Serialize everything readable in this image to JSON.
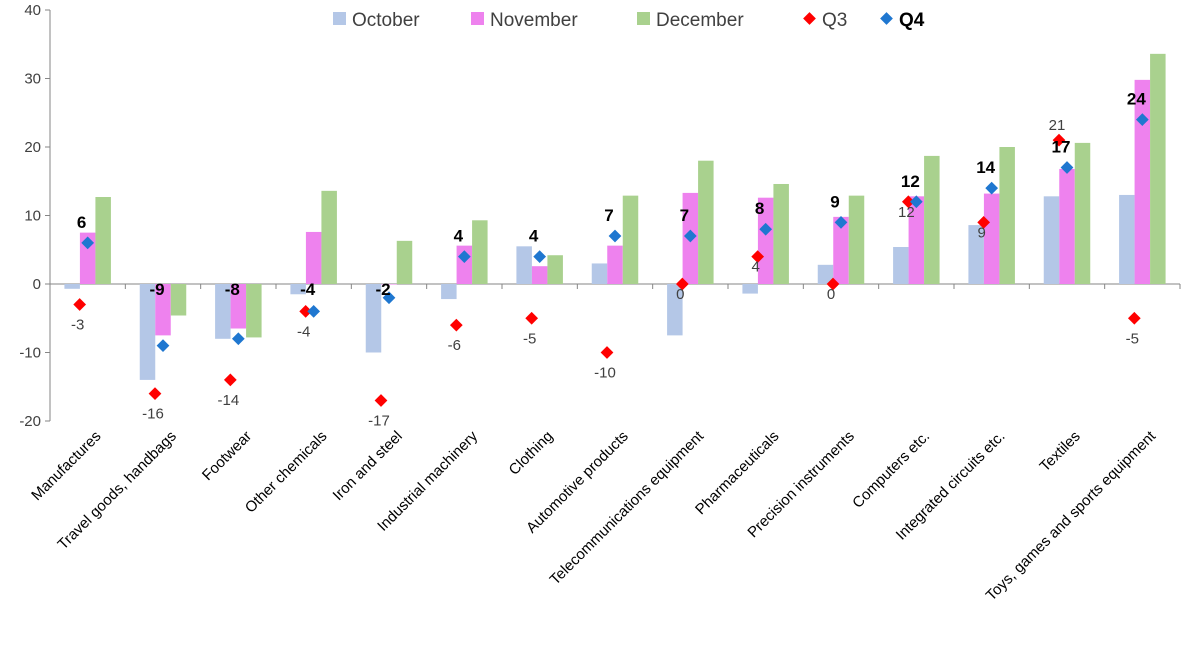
{
  "chart_data": {
    "type": "bar",
    "categories": [
      "Manufactures",
      "Travel goods, handbags",
      "Footwear",
      "Other chemicals",
      "Iron and steel",
      "Industrial machinery",
      "Clothing",
      "Automotive products",
      "Telecommunications equipment",
      "Pharmaceuticals",
      "Precision instruments",
      "Computers etc.",
      "Integrated circuits etc.",
      "Textiles",
      "Toys, games and sports equipment"
    ],
    "series": [
      {
        "name": "October",
        "kind": "bar",
        "color": "#b4c7e7",
        "values": [
          -0.7,
          -14,
          -8,
          -1.5,
          -10,
          -2.2,
          5.5,
          3,
          -7.5,
          -1.4,
          2.8,
          5.4,
          8.6,
          12.8,
          13
        ]
      },
      {
        "name": "November",
        "kind": "bar",
        "color": "#ee82ee",
        "values": [
          7.5,
          -7.5,
          -6.5,
          7.6,
          0,
          5.6,
          2.6,
          5.6,
          13.3,
          12.6,
          9.8,
          12.8,
          13.2,
          16.8,
          29.8
        ]
      },
      {
        "name": "December",
        "kind": "bar",
        "color": "#a9d18e",
        "values": [
          12.7,
          -4.6,
          -7.8,
          13.6,
          6.3,
          9.3,
          4.2,
          12.9,
          18,
          14.6,
          12.9,
          18.7,
          20,
          20.6,
          33.6
        ]
      },
      {
        "name": "Q3",
        "kind": "marker",
        "color": "#ff0000",
        "values": [
          -3,
          -16,
          -14,
          -4,
          -17,
          -6,
          -5,
          -10,
          0,
          4,
          0,
          12,
          9,
          21,
          -5
        ]
      },
      {
        "name": "Q4",
        "kind": "marker",
        "color": "#1f77d0",
        "values": [
          6,
          -9,
          -8,
          -4,
          -2,
          4,
          4,
          7,
          7,
          8,
          9,
          12,
          14,
          17,
          24
        ]
      }
    ],
    "ylim": [
      -20,
      40
    ],
    "yticks": [
      -20,
      -10,
      0,
      10,
      20,
      30,
      40
    ],
    "ytick_labels": [
      "-20",
      "-10",
      "0",
      "10",
      "20",
      "30",
      "40"
    ],
    "q3_labels": [
      "-3",
      "-16",
      "-14",
      "-4",
      "-17",
      "-6",
      "-5",
      "-10",
      "0",
      "4",
      "0",
      "12",
      "9",
      "21",
      "-5"
    ],
    "q4_labels": [
      "6",
      "-9",
      "-8",
      "-4",
      "-2",
      "4",
      "4",
      "7",
      "7",
      "8",
      "9",
      "12",
      "14",
      "17",
      "24"
    ],
    "legend": {
      "position": "top",
      "items": [
        {
          "label": "October",
          "shape": "square",
          "color": "#b4c7e7",
          "bold": false
        },
        {
          "label": "November",
          "shape": "square",
          "color": "#ee82ee",
          "bold": false
        },
        {
          "label": "December",
          "shape": "square",
          "color": "#a9d18e",
          "bold": false
        },
        {
          "label": "Q3",
          "shape": "diamond",
          "color": "#ff0000",
          "bold": false
        },
        {
          "label": "Q4",
          "shape": "diamond",
          "color": "#1f77d0",
          "bold": true
        }
      ]
    },
    "grid": false
  }
}
